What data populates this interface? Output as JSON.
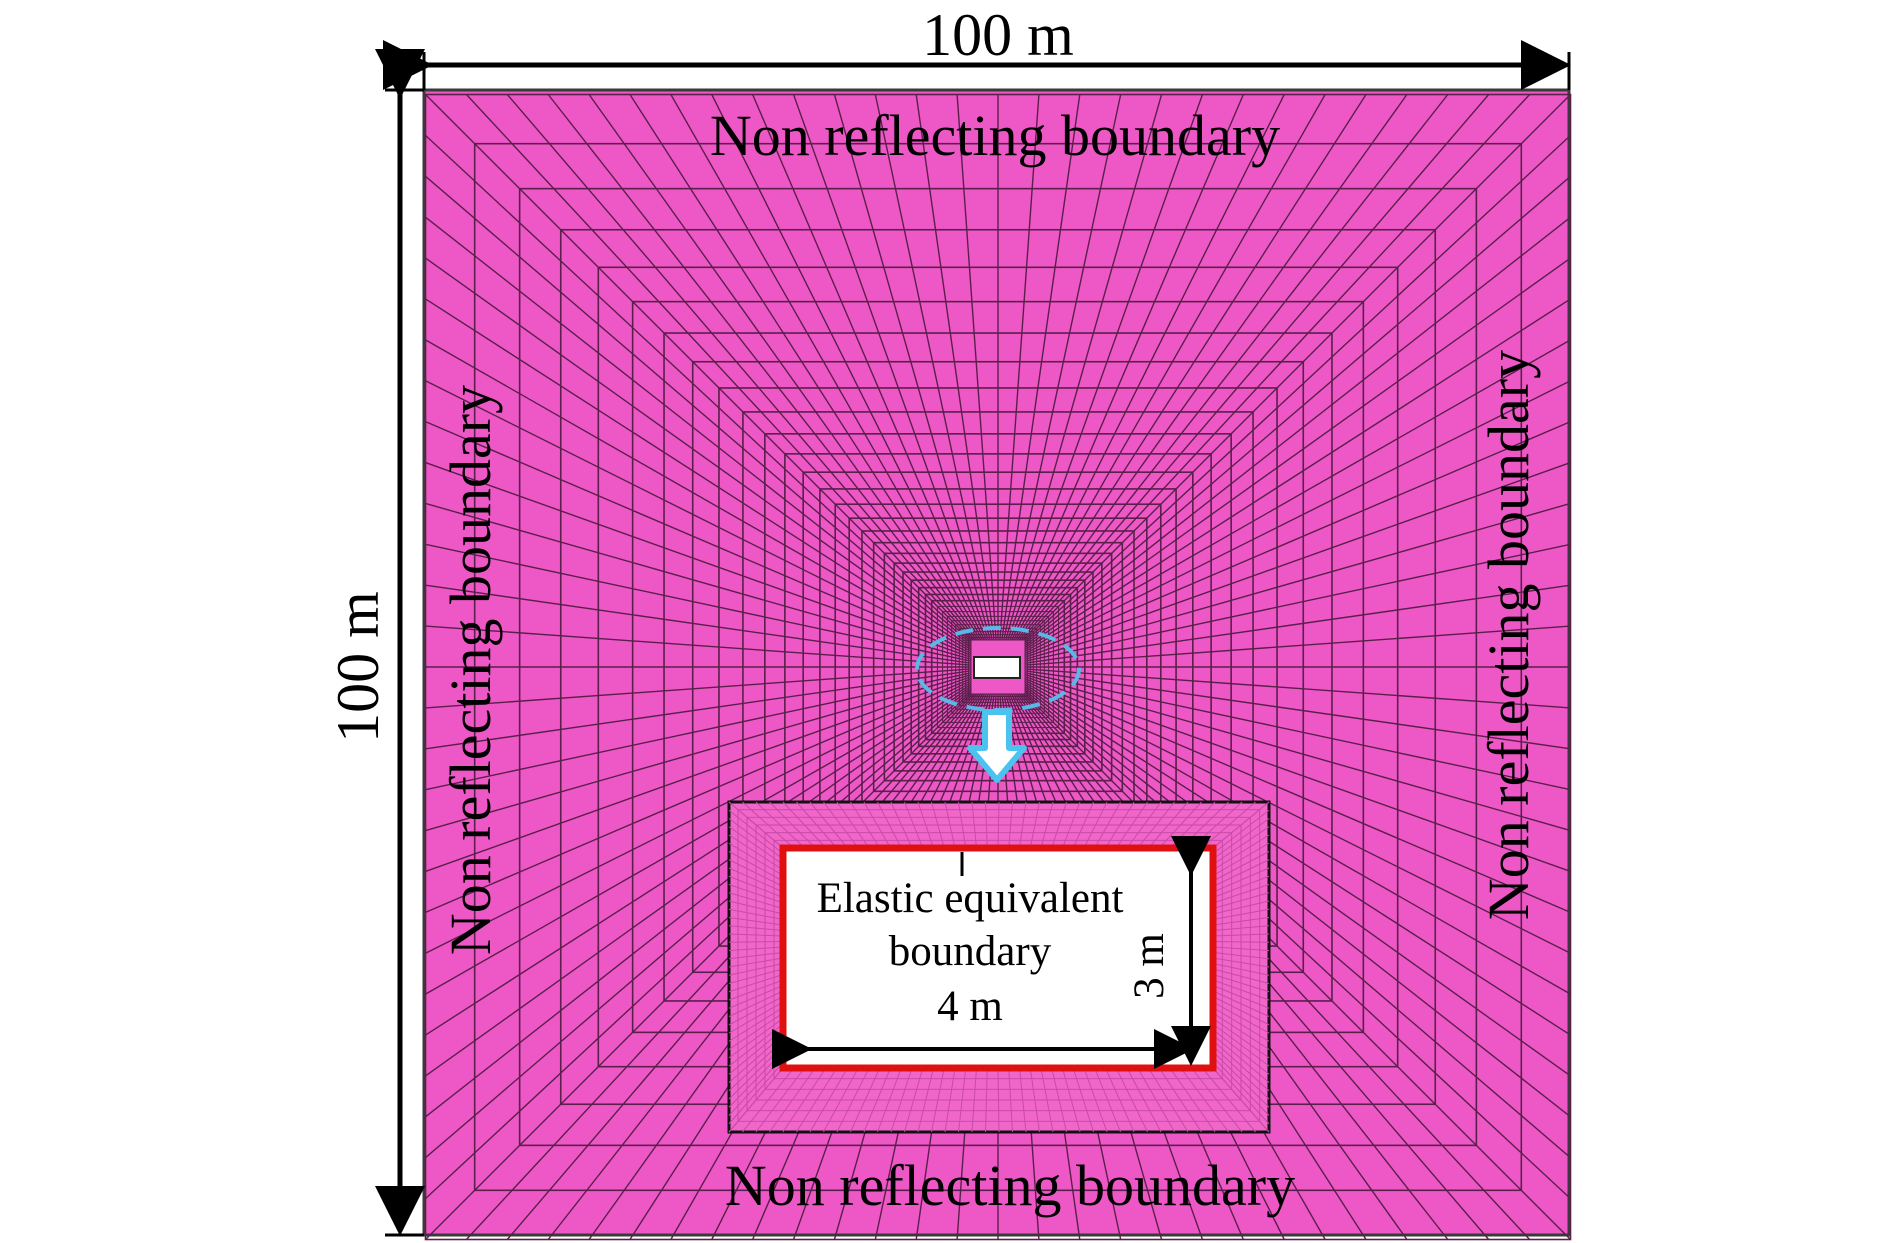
{
  "figure": {
    "width_label": "100 m",
    "height_label": "100 m",
    "boundary_top": "Non reflecting boundary",
    "boundary_bottom": "Non reflecting boundary",
    "boundary_left": "Non reflecting boundary",
    "boundary_right": "Non reflecting boundary",
    "inset_line1": "Elastic equivalent",
    "inset_line2": "boundary",
    "inset_width_label": "4 m",
    "inset_height_label": "3 m"
  },
  "colors": {
    "mesh_fill": "#ee58c6",
    "mesh_lines": "#5a1f4a",
    "highlight_ellipse": "#58b8e6",
    "arrow": "#4cc3ef",
    "inset_border": "#e01010",
    "inset_frame": "#111111"
  }
}
